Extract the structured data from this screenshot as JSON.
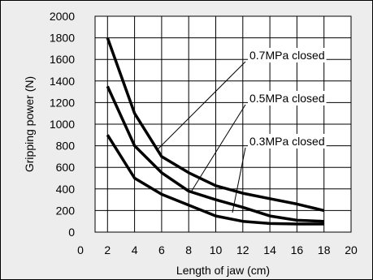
{
  "chart_data": {
    "type": "line",
    "xlabel": "Length of jaw (cm)",
    "ylabel": "Gripping power (N)",
    "xlim": [
      0,
      20
    ],
    "ylim": [
      0,
      2000
    ],
    "x_ticks": [
      0,
      2,
      4,
      6,
      8,
      10,
      12,
      14,
      16,
      18,
      20
    ],
    "y_ticks": [
      0,
      200,
      400,
      600,
      800,
      1000,
      1200,
      1400,
      1600,
      1800,
      2000
    ],
    "grid": true,
    "series": [
      {
        "name": "0.7MPa closed",
        "x": [
          2,
          4,
          6,
          8,
          10,
          12,
          14,
          16,
          18
        ],
        "y": [
          1800,
          1100,
          700,
          550,
          430,
          360,
          310,
          260,
          200
        ]
      },
      {
        "name": "0.5MPa closed",
        "x": [
          2,
          4,
          6,
          8,
          10,
          12,
          14,
          16,
          18
        ],
        "y": [
          1350,
          800,
          550,
          380,
          300,
          230,
          150,
          110,
          100
        ]
      },
      {
        "name": "0.3MPa closed",
        "x": [
          2,
          4,
          6,
          8,
          10,
          12,
          14,
          16,
          18
        ],
        "y": [
          900,
          500,
          350,
          250,
          150,
          100,
          80,
          75,
          75
        ]
      }
    ],
    "colors": {
      "line": "#000000",
      "grid": "#000000",
      "plot_bg": "#ffffff",
      "frame_bg": "#ededed"
    }
  }
}
